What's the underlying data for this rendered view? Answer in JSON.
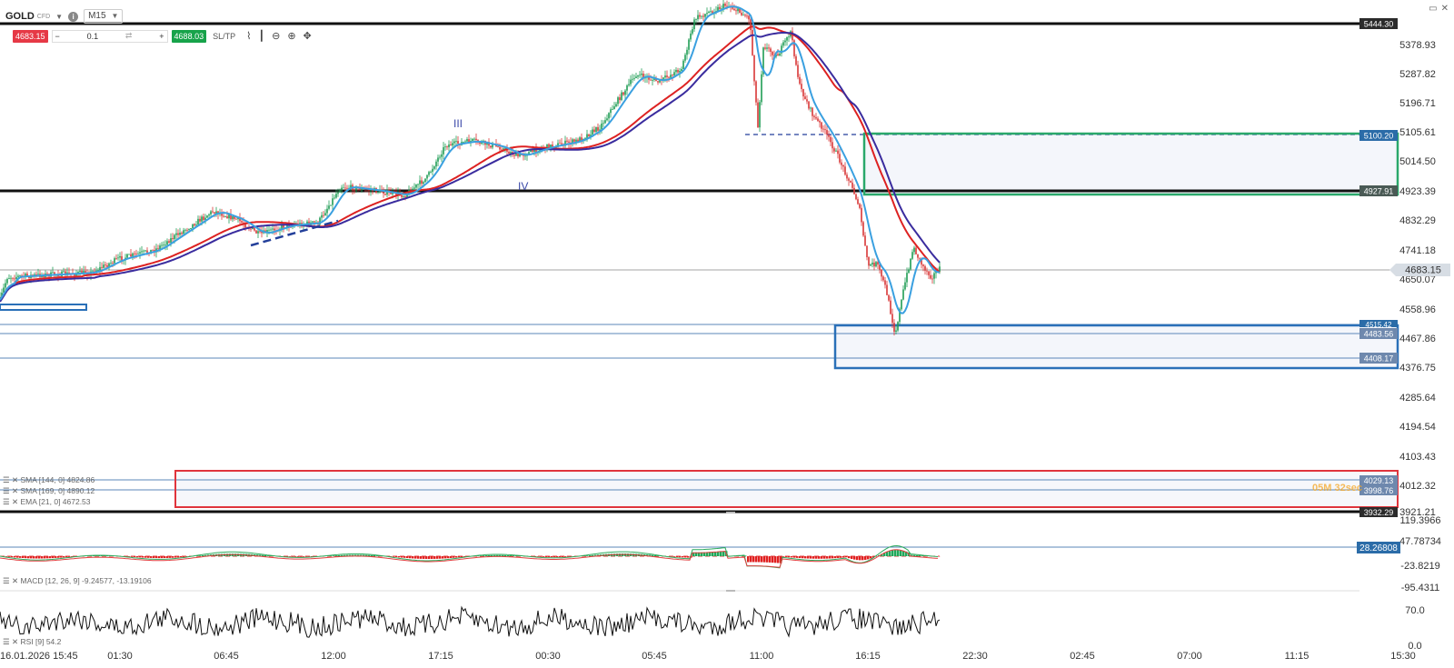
{
  "header": {
    "symbol": "GOLD",
    "symbol_type": "CFD",
    "timeframe": "M15",
    "sell_price": "4683.15",
    "quantity": "0.1",
    "buy_price": "4688.03",
    "sltp_label": "SL/TP"
  },
  "legends": {
    "sma144": "SMA [144, 0] 4824.86",
    "sma169": "SMA [169, 0] 4890.12",
    "ema21": "EMA [21, 0] 4672.53",
    "macd": "MACD [12, 26, 9] -9.24577, -13.19106",
    "rsi": "RSI [9] 54.2"
  },
  "timer": "05M 32sec",
  "annotations": {
    "wave3": "III",
    "wave4": "IV"
  },
  "price_axis": [
    "5378.93",
    "5287.82",
    "5196.71",
    "5105.61",
    "5014.50",
    "4923.39",
    "4832.29",
    "4741.18",
    "4650.07",
    "4558.96",
    "4467.86",
    "4376.75",
    "4285.64",
    "4194.54",
    "4103.43",
    "4012.32",
    "3921.21"
  ],
  "price_tags": {
    "top_line": "5444.30",
    "green_top": "5100.20",
    "green_bottom": "4927.91",
    "current": "4683.15",
    "blue_top": "4515.42",
    "blue_mid": "4483.56",
    "blue_bottom": "4408.17",
    "red_top": "4029.13",
    "red_mid": "3998.76",
    "bottom_line": "3932.29"
  },
  "macd_axis": [
    "119.3966",
    "47.78734",
    "-23.8219",
    "-95.4311"
  ],
  "macd_tag": "28.26808",
  "rsi_axis": [
    "70.0",
    "0.0"
  ],
  "time_axis": [
    "16.01.2026 15:45",
    "01:30",
    "06:45",
    "12:00",
    "17:15",
    "00:30",
    "05:45",
    "11:00",
    "16:15",
    "22:30",
    "02:45",
    "07:00",
    "11:15",
    "15:30"
  ],
  "colors": {
    "sell": "#e63946",
    "buy": "#17a34a",
    "green_zone": "#2aa86b",
    "blue_zone": "#2a70b8",
    "red_zone": "#e0343c",
    "ema": "#3aa0e0",
    "sma144": "#dd2222",
    "sma169": "#3a2c9e"
  }
}
